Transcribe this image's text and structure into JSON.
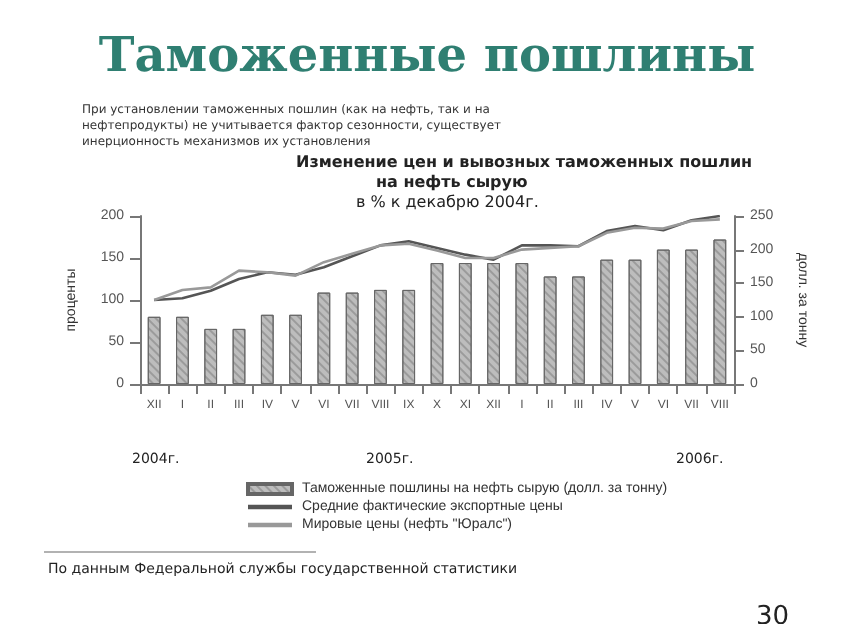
{
  "chart_data": {
    "type": "bar",
    "title": "Таможенные пошлины",
    "subtitle": "При установлении таможенных пошлин (как на нефть, так и на нефтепродукты) не учитывается фактор сезонности, существует инерционность механизмов их установления",
    "annotations": [
      "Изменение цен и вывозных таможенных пошлин",
      "на нефть сырую",
      "в % к декабрю 2004г.",
      "2004г.",
      "2005г.",
      "2006г.",
      "По данным Федеральной службы государственной статистики",
      "30"
    ],
    "categories": [
      "XII",
      "I",
      "II",
      "III",
      "IV",
      "V",
      "VI",
      "VII",
      "VIII",
      "IX",
      "X",
      "XI",
      "XII",
      "I",
      "II",
      "III",
      "IV",
      "V",
      "VI",
      "VII",
      "VIII"
    ],
    "series": [
      {
        "name": "Таможенные пошлины на нефть сырую (долл. за тонну)",
        "axis": "y2",
        "color": "#bdbdbd",
        "values": [
          100,
          100,
          82,
          82,
          103,
          103,
          136,
          136,
          140,
          140,
          180,
          180,
          180,
          180,
          160,
          160,
          185,
          185,
          200,
          200,
          215
        ]
      },
      {
        "name": "Средние фактические экспортные цены",
        "type": "line",
        "color": "#555555",
        "values": [
          100,
          102,
          111,
          125,
          133,
          130,
          139,
          152,
          165,
          170,
          162,
          154,
          148,
          165,
          165,
          164,
          182,
          188,
          183,
          195,
          200
        ]
      },
      {
        "name": "Мировые цены (нефть \"Юралс\")",
        "type": "line",
        "color": "#999999",
        "values": [
          100,
          112,
          115,
          135,
          133,
          129,
          145,
          155,
          165,
          167,
          159,
          150,
          150,
          160,
          162,
          164,
          180,
          186,
          185,
          194,
          196
        ]
      }
    ],
    "ylabel": "проценты",
    "y2label": "долл. за тонну",
    "ylim": [
      0,
      200
    ],
    "yticks": [
      0,
      50,
      100,
      150,
      200
    ],
    "y2lim": [
      0,
      250
    ],
    "y2ticks": [
      0,
      50,
      100,
      150,
      200,
      250
    ],
    "grid": false,
    "legend": "bottom",
    "marker": "none",
    "line_style": "solid"
  }
}
